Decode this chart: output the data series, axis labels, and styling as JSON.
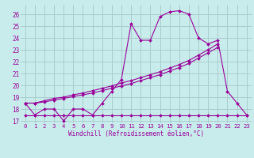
{
  "x": [
    0,
    1,
    2,
    3,
    4,
    5,
    6,
    7,
    8,
    9,
    10,
    11,
    12,
    13,
    14,
    15,
    16,
    17,
    18,
    19,
    20,
    21,
    22,
    23
  ],
  "y_main": [
    18.5,
    17.5,
    18.0,
    18.0,
    17.0,
    18.0,
    18.0,
    17.5,
    18.5,
    19.5,
    20.5,
    25.2,
    23.8,
    23.8,
    25.8,
    26.2,
    26.3,
    26.0,
    24.0,
    23.5,
    23.8,
    19.5,
    18.5,
    17.5
  ],
  "y_diag1": [
    18.5,
    18.5,
    18.7,
    18.9,
    19.0,
    19.2,
    19.35,
    19.55,
    19.75,
    19.95,
    20.2,
    20.4,
    20.65,
    20.9,
    21.15,
    21.45,
    21.75,
    22.1,
    22.55,
    23.0,
    23.5,
    null,
    null,
    null
  ],
  "y_diag2": [
    18.5,
    18.5,
    18.6,
    18.75,
    18.9,
    19.05,
    19.2,
    19.35,
    19.55,
    19.75,
    19.95,
    20.15,
    20.4,
    20.65,
    20.9,
    21.2,
    21.5,
    21.85,
    22.3,
    22.75,
    23.2,
    null,
    null,
    null
  ],
  "y_flat": [
    17.5,
    17.5,
    17.5,
    17.5,
    17.5,
    17.5,
    17.5,
    17.5,
    17.5,
    17.5,
    17.5,
    17.5,
    17.5,
    17.5,
    17.5,
    17.5,
    17.5,
    17.5,
    17.5,
    17.5,
    17.5,
    17.5,
    17.5,
    17.5
  ],
  "bg_color": "#c8ecec",
  "line_color": "#990099",
  "grid_color": "#aacccc",
  "ylabel_vals": [
    17,
    18,
    19,
    20,
    21,
    22,
    23,
    24,
    25,
    26
  ],
  "ylim": [
    16.8,
    26.8
  ],
  "xlim": [
    -0.5,
    23.5
  ],
  "xlabel": "Windchill (Refroidissement éolien,°C)"
}
